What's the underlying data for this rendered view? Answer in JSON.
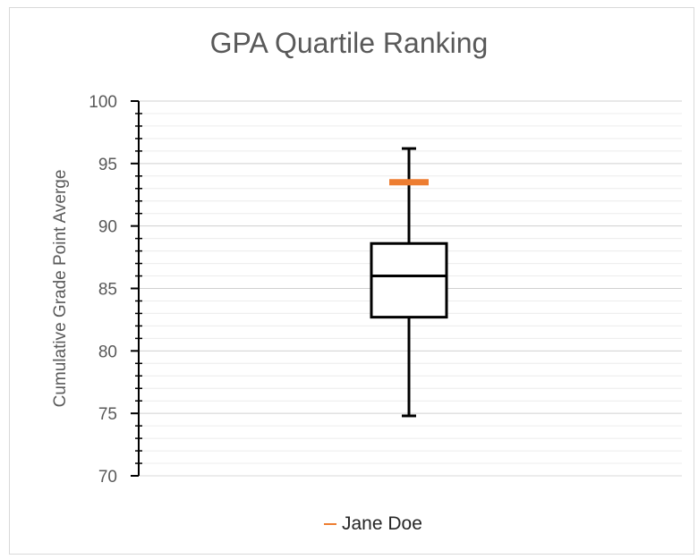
{
  "chart_data": {
    "type": "box",
    "title": "GPA Quartile Ranking",
    "ylabel": "Cumulative Grade Point Averge",
    "ylim": [
      70,
      100
    ],
    "yticks": [
      70,
      75,
      80,
      85,
      90,
      95,
      100
    ],
    "minor_step": 1,
    "grid": true,
    "box": {
      "min": 74.8,
      "q1": 82.7,
      "median": 86.0,
      "q3": 88.6,
      "max": 96.2
    },
    "marker": {
      "name": "Jane Doe",
      "value": 93.5,
      "color": "#ed7d31"
    },
    "legend": {
      "position": "bottom",
      "entries": [
        "Jane Doe"
      ]
    }
  },
  "colors": {
    "marker": "#ed7d31",
    "box": "#000000",
    "grid": "#d9d9d9",
    "text": "#595959"
  }
}
